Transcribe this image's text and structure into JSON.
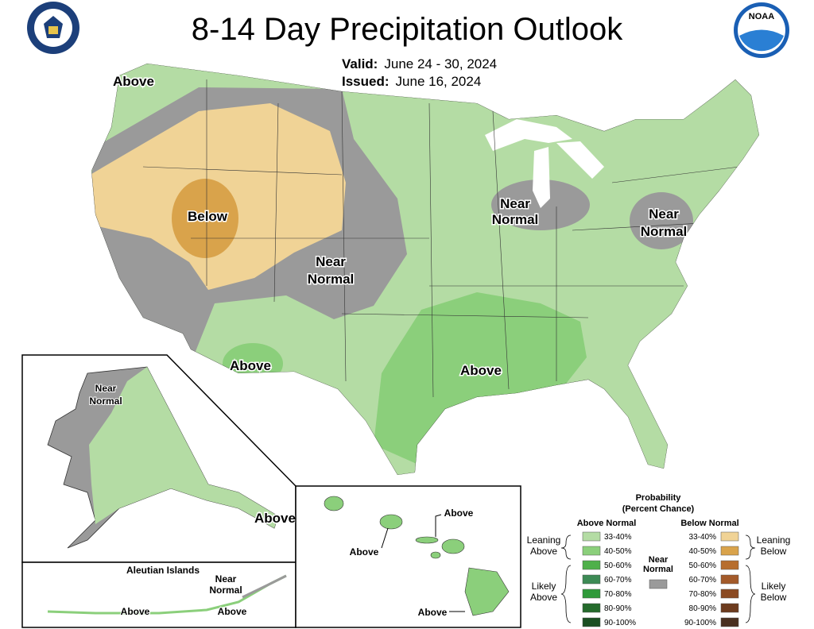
{
  "header": {
    "title": "8-14 Day Precipitation Outlook",
    "valid_label": "Valid:",
    "valid": "June 24 - 30, 2024",
    "issued_label": "Issued:",
    "issued": "June 16, 2024"
  },
  "logos": {
    "noaa": "NOAA"
  },
  "conus_labels": {
    "northwest": "Above",
    "great_basin": "Below",
    "plains": [
      "Near",
      "Normal"
    ],
    "michigan": [
      "Near",
      "Normal"
    ],
    "mid_atlantic": [
      "Near",
      "Normal"
    ],
    "arizona": "Above",
    "south": "Above"
  },
  "alaska_labels": {
    "west": [
      "Near",
      "Normal"
    ],
    "southeast": "Above"
  },
  "aleutian_labels": {
    "title": "Aleutian Islands",
    "east": [
      "Near",
      "Normal"
    ],
    "west": "Above",
    "middle": "Above"
  },
  "hawaii_labels": {
    "kauai": "Above",
    "maui": "Above",
    "big_island": "Above"
  },
  "legend": {
    "title": [
      "Probability",
      "(Percent Chance)"
    ],
    "above_header": "Above Normal",
    "below_header": "Below Normal",
    "above": [
      {
        "label": "33-40%",
        "color": "#b4dca4"
      },
      {
        "label": "40-50%",
        "color": "#8bcf7b"
      },
      {
        "label": "50-60%",
        "color": "#4fb04a"
      },
      {
        "label": "60-70%",
        "color": "#3d8a55"
      },
      {
        "label": "70-80%",
        "color": "#2f9a3a"
      },
      {
        "label": "80-90%",
        "color": "#256b2c"
      },
      {
        "label": "90-100%",
        "color": "#1b4f22"
      }
    ],
    "below": [
      {
        "label": "33-40%",
        "color": "#f0d396"
      },
      {
        "label": "40-50%",
        "color": "#d9a34b"
      },
      {
        "label": "50-60%",
        "color": "#b76e2e"
      },
      {
        "label": "60-70%",
        "color": "#a35a2a"
      },
      {
        "label": "70-80%",
        "color": "#8b4a22"
      },
      {
        "label": "80-90%",
        "color": "#6d3b1e"
      },
      {
        "label": "90-100%",
        "color": "#4a3020"
      }
    ],
    "near_normal": {
      "label": [
        "Near",
        "Normal"
      ],
      "color": "#9a9a9a"
    },
    "leaning_above": [
      "Leaning",
      "Above"
    ],
    "likely_above": [
      "Likely",
      "Above"
    ],
    "leaning_below": [
      "Leaning",
      "Below"
    ],
    "likely_below": [
      "Likely",
      "Below"
    ]
  }
}
